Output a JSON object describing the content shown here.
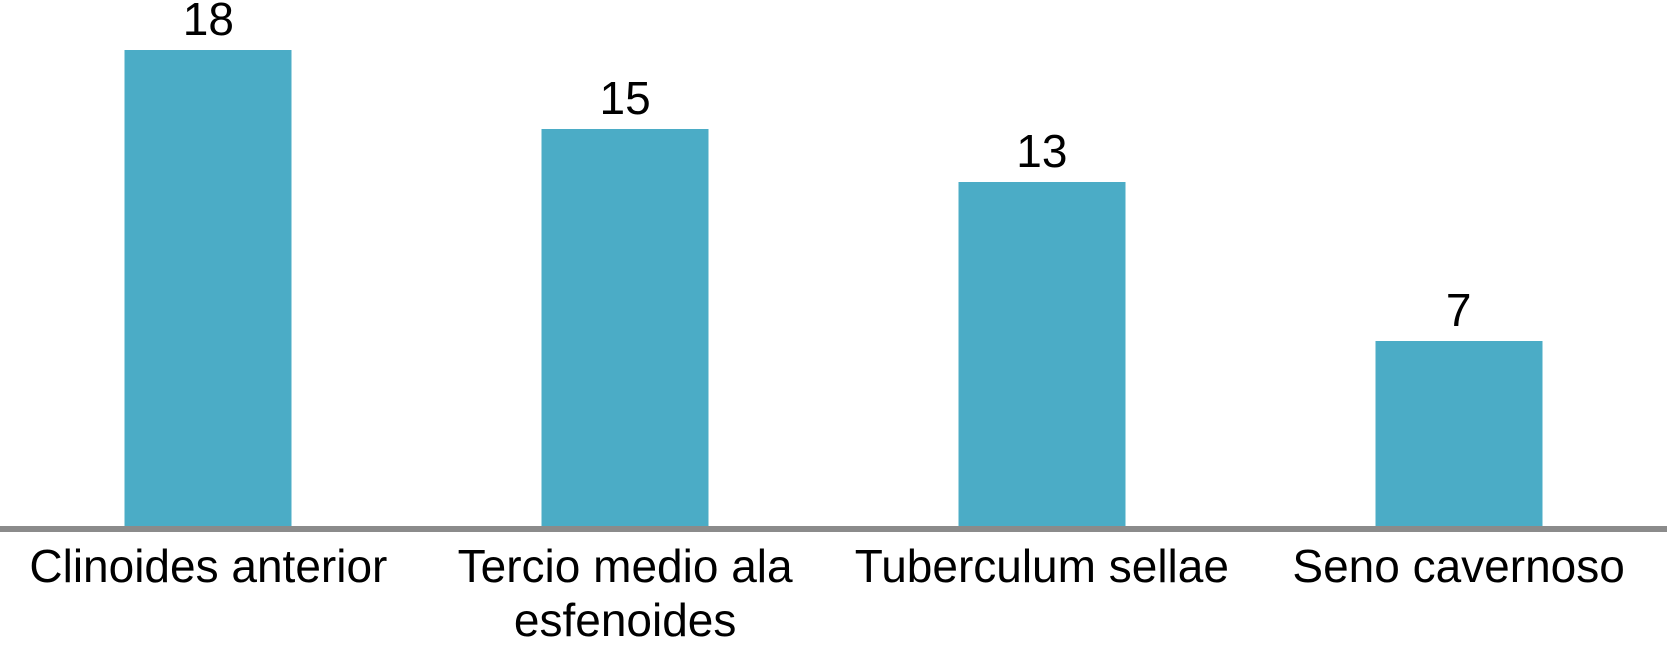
{
  "chart_data": {
    "type": "bar",
    "title": "",
    "xlabel": "",
    "ylabel": "",
    "categories": [
      "Clinoides anterior",
      "Tercio medio ala esfenoides",
      "Tuberculum sellae",
      "Seno cavernoso"
    ],
    "values": [
      18,
      15,
      13,
      7
    ],
    "data_labels": [
      "18",
      "15",
      "13",
      "7"
    ],
    "ylim": [
      0,
      20
    ],
    "grid": false,
    "legend": false,
    "axis_ticks_visible": false,
    "bar_color": "#4BACC6",
    "axis_line_color": "#8B8B8B",
    "label_color": "#000000",
    "background_color": "#FFFFFF"
  }
}
